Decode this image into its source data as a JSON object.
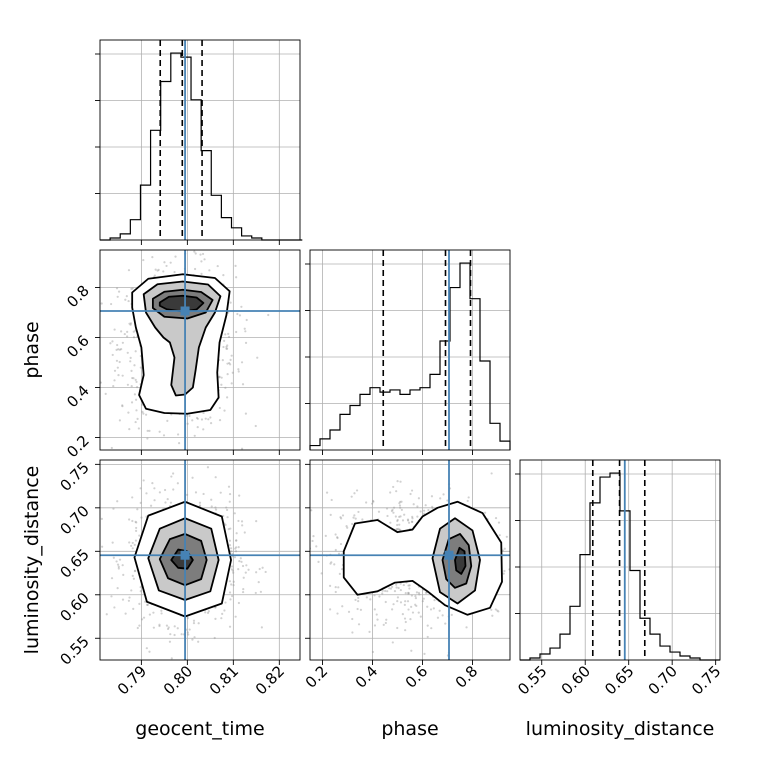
{
  "chart_data": {
    "type": "corner",
    "parameters": [
      "geocent_time",
      "phase",
      "luminosity_distance"
    ],
    "grid": true,
    "truth_color": "#4682b4",
    "marginals": {
      "geocent_time": {
        "range": [
          0.781,
          0.8245
        ],
        "ticks": [
          0.79,
          0.8,
          0.81,
          0.82
        ],
        "tick_labels": [
          "0.79",
          "0.80",
          "0.81",
          "0.82"
        ],
        "truth": 0.7995,
        "quantiles": [
          0.7941,
          0.7989,
          0.8032
        ],
        "hist_edges": [
          0.781,
          0.7832,
          0.7854,
          0.7876,
          0.7898,
          0.792,
          0.7942,
          0.7964,
          0.7986,
          0.8008,
          0.803,
          0.8052,
          0.8074,
          0.8096,
          0.8118,
          0.814,
          0.8162,
          0.8184,
          0.8206,
          0.8228,
          0.825
        ],
        "hist_counts": [
          0.0,
          0.01,
          0.03,
          0.1,
          0.27,
          0.54,
          0.78,
          0.92,
          0.9,
          0.69,
          0.44,
          0.22,
          0.11,
          0.06,
          0.02,
          0.01,
          0.0,
          0.0,
          0.0,
          0.0
        ]
      },
      "phase": {
        "range": [
          0.15,
          0.95
        ],
        "ticks": [
          0.2,
          0.4,
          0.6,
          0.8
        ],
        "tick_labels": [
          "0.2",
          "0.4",
          "0.6",
          "0.8"
        ],
        "truth": 0.706,
        "quantiles": [
          0.443,
          0.692,
          0.792
        ],
        "hist_edges": [
          0.15,
          0.19,
          0.23,
          0.27,
          0.31,
          0.35,
          0.39,
          0.43,
          0.47,
          0.51,
          0.55,
          0.59,
          0.63,
          0.67,
          0.71,
          0.75,
          0.79,
          0.83,
          0.87,
          0.91,
          0.95
        ],
        "hist_counts": [
          0.02,
          0.05,
          0.09,
          0.16,
          0.2,
          0.25,
          0.28,
          0.26,
          0.27,
          0.25,
          0.27,
          0.28,
          0.34,
          0.49,
          0.73,
          0.84,
          0.68,
          0.4,
          0.12,
          0.04
        ]
      },
      "luminosity_distance": {
        "range": [
          0.525,
          0.755
        ],
        "ticks": [
          0.55,
          0.6,
          0.65,
          0.7,
          0.75
        ],
        "tick_labels": [
          "0.55",
          "0.60",
          "0.65",
          "0.70",
          "0.75"
        ],
        "truth": 0.6455,
        "quantiles": [
          0.6087,
          0.6395,
          0.6685
        ],
        "hist_edges": [
          0.525,
          0.5365,
          0.548,
          0.5595,
          0.571,
          0.5825,
          0.594,
          0.6055,
          0.617,
          0.6285,
          0.64,
          0.6515,
          0.663,
          0.6745,
          0.686,
          0.6975,
          0.709,
          0.7205,
          0.732,
          0.7435,
          0.755
        ],
        "hist_counts": [
          0.0,
          0.01,
          0.03,
          0.06,
          0.13,
          0.27,
          0.53,
          0.79,
          0.92,
          0.94,
          0.75,
          0.45,
          0.21,
          0.13,
          0.07,
          0.04,
          0.02,
          0.01,
          0.0,
          0.0
        ]
      }
    },
    "joint": [
      {
        "x": "geocent_time",
        "y": "phase",
        "ytick_labels": [
          "0.2",
          "0.4",
          "0.6",
          "0.8"
        ],
        "contours": [
          [
            [
              0.794,
              0.74
            ],
            [
              0.796,
              0.763
            ],
            [
              0.799,
              0.767
            ],
            [
              0.802,
              0.76
            ],
            [
              0.8035,
              0.738
            ],
            [
              0.802,
              0.712
            ],
            [
              0.799,
              0.704
            ],
            [
              0.7955,
              0.713
            ],
            [
              0.794,
              0.727
            ]
          ],
          [
            [
              0.7925,
              0.755
            ],
            [
              0.795,
              0.783
            ],
            [
              0.799,
              0.791
            ],
            [
              0.803,
              0.782
            ],
            [
              0.8055,
              0.75
            ],
            [
              0.804,
              0.7
            ],
            [
              0.8,
              0.676
            ],
            [
              0.795,
              0.683
            ],
            [
              0.7925,
              0.718
            ]
          ],
          [
            [
              0.7905,
              0.773
            ],
            [
              0.7935,
              0.813
            ],
            [
              0.799,
              0.824
            ],
            [
              0.8045,
              0.812
            ],
            [
              0.8072,
              0.765
            ],
            [
              0.806,
              0.7
            ],
            [
              0.804,
              0.64
            ],
            [
              0.8025,
              0.56
            ],
            [
              0.8018,
              0.47
            ],
            [
              0.8012,
              0.4
            ],
            [
              0.7995,
              0.372
            ],
            [
              0.7975,
              0.368
            ],
            [
              0.7965,
              0.41
            ],
            [
              0.7972,
              0.52
            ],
            [
              0.7962,
              0.58
            ],
            [
              0.7948,
              0.6
            ],
            [
              0.793,
              0.64
            ],
            [
              0.791,
              0.7
            ]
          ],
          [
            [
              0.788,
              0.78
            ],
            [
              0.7915,
              0.835
            ],
            [
              0.799,
              0.853
            ],
            [
              0.806,
              0.838
            ],
            [
              0.8092,
              0.785
            ],
            [
              0.8085,
              0.69
            ],
            [
              0.807,
              0.58
            ],
            [
              0.8065,
              0.46
            ],
            [
              0.8068,
              0.36
            ],
            [
              0.805,
              0.31
            ],
            [
              0.8,
              0.295
            ],
            [
              0.795,
              0.298
            ],
            [
              0.791,
              0.315
            ],
            [
              0.7895,
              0.37
            ],
            [
              0.7905,
              0.45
            ],
            [
              0.79,
              0.56
            ],
            [
              0.7888,
              0.64
            ],
            [
              0.788,
              0.72
            ]
          ]
        ]
      },
      {
        "x": "geocent_time",
        "y": "luminosity_distance",
        "ytick_labels": [
          "0.55",
          "0.60",
          "0.65",
          "0.70",
          "0.75"
        ],
        "contours": [
          [
            [
              0.7965,
              0.64
            ],
            [
              0.798,
              0.652
            ],
            [
              0.8,
              0.65
            ],
            [
              0.8012,
              0.64
            ],
            [
              0.8,
              0.63
            ],
            [
              0.798,
              0.631
            ]
          ],
          [
            [
              0.794,
              0.641
            ],
            [
              0.7962,
              0.664
            ],
            [
              0.7995,
              0.67
            ],
            [
              0.803,
              0.662
            ],
            [
              0.8042,
              0.64
            ],
            [
              0.803,
              0.618
            ],
            [
              0.7995,
              0.611
            ],
            [
              0.7958,
              0.619
            ]
          ],
          [
            [
              0.7915,
              0.642
            ],
            [
              0.794,
              0.676
            ],
            [
              0.7995,
              0.688
            ],
            [
              0.8052,
              0.676
            ],
            [
              0.8068,
              0.64
            ],
            [
              0.805,
              0.604
            ],
            [
              0.7995,
              0.594
            ],
            [
              0.7938,
              0.605
            ]
          ],
          [
            [
              0.7885,
              0.643
            ],
            [
              0.7915,
              0.691
            ],
            [
              0.7995,
              0.707
            ],
            [
              0.8075,
              0.69
            ],
            [
              0.8095,
              0.64
            ],
            [
              0.8075,
              0.59
            ],
            [
              0.7995,
              0.575
            ],
            [
              0.7912,
              0.592
            ]
          ]
        ]
      },
      {
        "x": "phase",
        "y": "luminosity_distance",
        "contours": [
          [
            [
              0.73,
              0.64
            ],
            [
              0.748,
              0.654
            ],
            [
              0.768,
              0.65
            ],
            [
              0.772,
              0.633
            ],
            [
              0.755,
              0.624
            ],
            [
              0.735,
              0.628
            ]
          ],
          [
            [
              0.68,
              0.64
            ],
            [
              0.705,
              0.664
            ],
            [
              0.75,
              0.67
            ],
            [
              0.785,
              0.657
            ],
            [
              0.795,
              0.633
            ],
            [
              0.775,
              0.613
            ],
            [
              0.73,
              0.608
            ],
            [
              0.695,
              0.618
            ]
          ],
          [
            [
              0.64,
              0.642
            ],
            [
              0.67,
              0.676
            ],
            [
              0.73,
              0.688
            ],
            [
              0.8,
              0.674
            ],
            [
              0.83,
              0.64
            ],
            [
              0.81,
              0.605
            ],
            [
              0.74,
              0.59
            ],
            [
              0.67,
              0.603
            ]
          ],
          [
            [
              0.285,
              0.65
            ],
            [
              0.33,
              0.682
            ],
            [
              0.42,
              0.686
            ],
            [
              0.5,
              0.672
            ],
            [
              0.56,
              0.675
            ],
            [
              0.6,
              0.69
            ],
            [
              0.66,
              0.7
            ],
            [
              0.74,
              0.707
            ],
            [
              0.84,
              0.694
            ],
            [
              0.915,
              0.66
            ],
            [
              0.918,
              0.615
            ],
            [
              0.87,
              0.585
            ],
            [
              0.78,
              0.577
            ],
            [
              0.69,
              0.588
            ],
            [
              0.62,
              0.604
            ],
            [
              0.56,
              0.616
            ],
            [
              0.49,
              0.614
            ],
            [
              0.42,
              0.604
            ],
            [
              0.34,
              0.6
            ],
            [
              0.285,
              0.62
            ]
          ]
        ]
      }
    ]
  }
}
